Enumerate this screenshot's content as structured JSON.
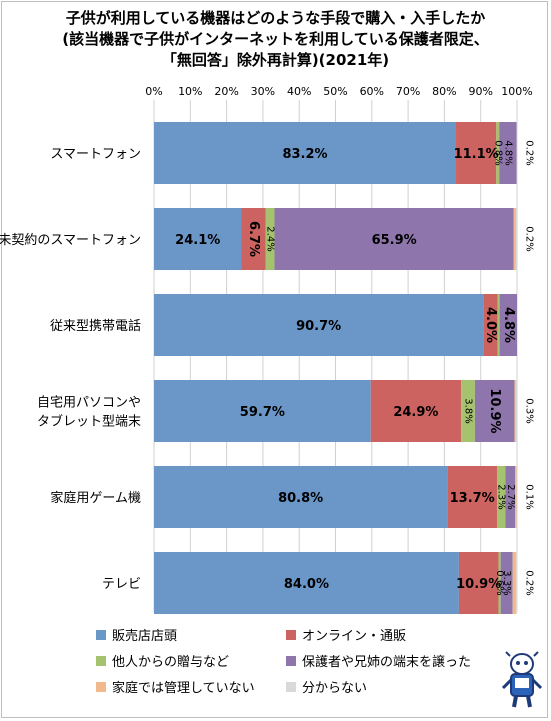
{
  "title_lines": [
    "子供が利用している機器はどのような手段で購入・入手したか",
    "(該当機器で子供がインターネットを利用している保護者限定、",
    "「無回答」除外再計算)(2021年)"
  ],
  "colors": {
    "販売店店頭": "#6a96c8",
    "オンライン・通販": "#cd6361",
    "他人からの贈与など": "#a5c36f",
    "保護者や兄姉の端末を譲った": "#8e75ac",
    "家庭では管理していない": "#f2b98c",
    "分からない": "#d9d9d9"
  },
  "chart_data": {
    "type": "bar",
    "orientation": "horizontal",
    "stacked": true,
    "xlim": [
      0,
      100
    ],
    "x_ticks": [
      "0%",
      "10%",
      "20%",
      "30%",
      "40%",
      "50%",
      "60%",
      "70%",
      "80%",
      "90%",
      "100%"
    ],
    "categories": [
      [
        "スマートフォン"
      ],
      [
        "未契約のスマートフォン"
      ],
      [
        "従来型携帯電話"
      ],
      [
        "自宅用パソコンや",
        "タブレット型端末"
      ],
      [
        "家庭用ゲーム機"
      ],
      [
        "テレビ"
      ]
    ],
    "series": [
      {
        "name": "販売店店頭",
        "values": [
          83.2,
          24.1,
          90.7,
          59.7,
          80.8,
          84.0
        ]
      },
      {
        "name": "オンライン・通販",
        "values": [
          11.1,
          6.7,
          4.0,
          24.9,
          13.7,
          10.9
        ]
      },
      {
        "name": "他人からの贈与など",
        "values": [
          0.8,
          2.4,
          0.5,
          3.8,
          2.3,
          0.6
        ]
      },
      {
        "name": "保護者や兄姉の端末を譲った",
        "values": [
          4.8,
          65.9,
          4.8,
          10.9,
          2.7,
          3.3
        ]
      },
      {
        "name": "家庭では管理していない",
        "values": [
          0.0,
          0.6,
          0.0,
          0.3,
          0.4,
          1.0
        ]
      },
      {
        "name": "分からない",
        "values": [
          0.2,
          0.2,
          0.0,
          0.3,
          0.1,
          0.2
        ]
      }
    ],
    "data_labels": [
      [
        {
          "s": 0,
          "text": "83.2%",
          "style": "h"
        },
        {
          "s": 1,
          "text": "11.1%",
          "style": "h"
        },
        {
          "s": 2,
          "text": "0.8%",
          "style": "v"
        },
        {
          "s": 3,
          "text": "4.8%",
          "style": "v"
        },
        {
          "s": 5,
          "text": "0.2%",
          "style": "v"
        }
      ],
      [
        {
          "s": 0,
          "text": "24.1%",
          "style": "h"
        },
        {
          "s": 1,
          "text": "6.7%",
          "style": "vb"
        },
        {
          "s": 2,
          "text": "2.4%",
          "style": "v"
        },
        {
          "s": 3,
          "text": "65.9%",
          "style": "h"
        },
        {
          "s": 5,
          "text": "0.2%",
          "style": "v"
        }
      ],
      [
        {
          "s": 0,
          "text": "90.7%",
          "style": "h"
        },
        {
          "s": 1,
          "text": "4.0%",
          "style": "vb"
        },
        {
          "s": 3,
          "text": "4.8%",
          "style": "vb"
        }
      ],
      [
        {
          "s": 0,
          "text": "59.7%",
          "style": "h"
        },
        {
          "s": 1,
          "text": "24.9%",
          "style": "h"
        },
        {
          "s": 2,
          "text": "3.8%",
          "style": "v"
        },
        {
          "s": 3,
          "text": "10.9%",
          "style": "vb"
        },
        {
          "s": 5,
          "text": "0.3%",
          "style": "v"
        }
      ],
      [
        {
          "s": 0,
          "text": "80.8%",
          "style": "h"
        },
        {
          "s": 1,
          "text": "13.7%",
          "style": "h"
        },
        {
          "s": 2,
          "text": "2.3%",
          "style": "v"
        },
        {
          "s": 3,
          "text": "2.7%",
          "style": "v"
        },
        {
          "s": 5,
          "text": "0.1%",
          "style": "v"
        }
      ],
      [
        {
          "s": 0,
          "text": "84.0%",
          "style": "h"
        },
        {
          "s": 1,
          "text": "10.9%",
          "style": "h"
        },
        {
          "s": 2,
          "text": "0.6%",
          "style": "v"
        },
        {
          "s": 3,
          "text": "3.3%",
          "style": "v"
        },
        {
          "s": 5,
          "text": "0.2%",
          "style": "v"
        }
      ]
    ],
    "legend_position": "bottom",
    "grid": true
  },
  "legend": [
    {
      "label": "販売店店頭",
      "color": "#6a96c8"
    },
    {
      "label": "オンライン・通販",
      "color": "#cd6361"
    },
    {
      "label": "他人からの贈与など",
      "color": "#a5c36f"
    },
    {
      "label": "保護者や兄姉の端末を譲った",
      "color": "#8e75ac"
    },
    {
      "label": "家庭では管理していない",
      "color": "#f2b98c"
    },
    {
      "label": "分からない",
      "color": "#d9d9d9"
    }
  ]
}
